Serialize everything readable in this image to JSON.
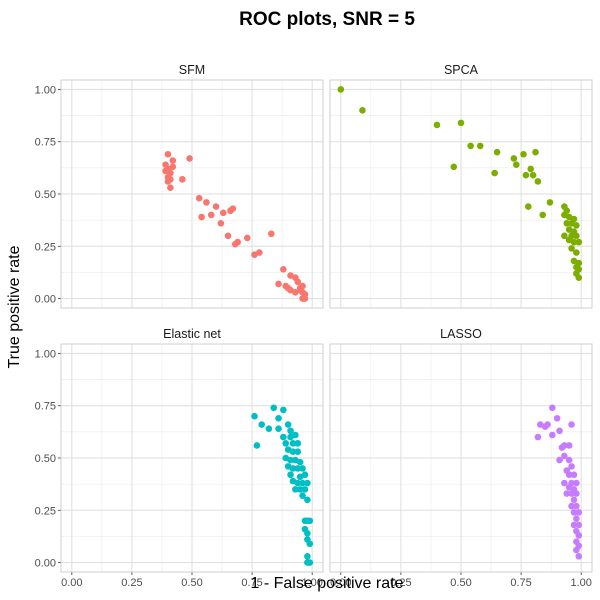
{
  "chart_data": {
    "type": "scatter",
    "title": "ROC plots, SNR = 5",
    "xlabel": "1 - False positive rate",
    "ylabel": "True positive rate",
    "xlim": [
      0,
      1
    ],
    "ylim": [
      0,
      1
    ],
    "x_ticks": [
      "0.00",
      "0.25",
      "0.50",
      "0.75",
      "1.00"
    ],
    "y_ticks": [
      "0.00",
      "0.25",
      "0.50",
      "0.75",
      "1.00"
    ],
    "grid": true,
    "legend": "none",
    "facets": [
      {
        "name": "SFM",
        "color": "#F8766D",
        "points": [
          [
            0.4,
            0.69
          ],
          [
            0.39,
            0.64
          ],
          [
            0.4,
            0.62
          ],
          [
            0.39,
            0.61
          ],
          [
            0.41,
            0.6
          ],
          [
            0.4,
            0.58
          ],
          [
            0.41,
            0.57
          ],
          [
            0.4,
            0.56
          ],
          [
            0.42,
            0.66
          ],
          [
            0.42,
            0.63
          ],
          [
            0.41,
            0.53
          ],
          [
            0.46,
            0.57
          ],
          [
            0.49,
            0.67
          ],
          [
            0.53,
            0.48
          ],
          [
            0.56,
            0.46
          ],
          [
            0.54,
            0.39
          ],
          [
            0.58,
            0.4
          ],
          [
            0.6,
            0.44
          ],
          [
            0.63,
            0.41
          ],
          [
            0.66,
            0.42
          ],
          [
            0.67,
            0.43
          ],
          [
            0.62,
            0.36
          ],
          [
            0.65,
            0.3
          ],
          [
            0.68,
            0.26
          ],
          [
            0.69,
            0.27
          ],
          [
            0.73,
            0.29
          ],
          [
            0.76,
            0.21
          ],
          [
            0.78,
            0.22
          ],
          [
            0.83,
            0.31
          ],
          [
            0.88,
            0.14
          ],
          [
            0.86,
            0.07
          ],
          [
            0.89,
            0.06
          ],
          [
            0.9,
            0.05
          ],
          [
            0.91,
            0.04
          ],
          [
            0.91,
            0.11
          ],
          [
            0.93,
            0.1
          ],
          [
            0.94,
            0.08
          ],
          [
            0.95,
            0.05
          ],
          [
            0.93,
            0.03
          ],
          [
            0.96,
            0.06
          ],
          [
            0.95,
            0.04
          ],
          [
            0.96,
            0.0
          ],
          [
            0.97,
            0.0
          ],
          [
            0.97,
            0.02
          ],
          [
            0.96,
            0.03
          ]
        ]
      },
      {
        "name": "SPCA",
        "color": "#7CAE00",
        "points": [
          [
            0.0,
            1.0
          ],
          [
            0.09,
            0.9
          ],
          [
            0.4,
            0.83
          ],
          [
            0.5,
            0.84
          ],
          [
            0.54,
            0.73
          ],
          [
            0.58,
            0.73
          ],
          [
            0.47,
            0.63
          ],
          [
            0.65,
            0.7
          ],
          [
            0.72,
            0.67
          ],
          [
            0.76,
            0.69
          ],
          [
            0.73,
            0.64
          ],
          [
            0.81,
            0.7
          ],
          [
            0.64,
            0.6
          ],
          [
            0.77,
            0.59
          ],
          [
            0.79,
            0.62
          ],
          [
            0.8,
            0.59
          ],
          [
            0.82,
            0.56
          ],
          [
            0.78,
            0.44
          ],
          [
            0.87,
            0.46
          ],
          [
            0.84,
            0.4
          ],
          [
            0.93,
            0.44
          ],
          [
            0.94,
            0.42
          ],
          [
            0.93,
            0.4
          ],
          [
            0.95,
            0.39
          ],
          [
            0.97,
            0.38
          ],
          [
            0.94,
            0.36
          ],
          [
            0.96,
            0.36
          ],
          [
            0.98,
            0.35
          ],
          [
            0.95,
            0.33
          ],
          [
            0.97,
            0.32
          ],
          [
            0.93,
            0.3
          ],
          [
            0.96,
            0.3
          ],
          [
            0.98,
            0.3
          ],
          [
            0.95,
            0.28
          ],
          [
            0.97,
            0.27
          ],
          [
            0.99,
            0.27
          ],
          [
            0.96,
            0.24
          ],
          [
            0.98,
            0.22
          ],
          [
            0.97,
            0.18
          ],
          [
            0.99,
            0.17
          ],
          [
            0.98,
            0.15
          ],
          [
            0.99,
            0.14
          ],
          [
            0.98,
            0.12
          ],
          [
            0.99,
            0.1
          ]
        ]
      },
      {
        "name": "Elastic net",
        "color": "#00BFC4",
        "points": [
          [
            0.76,
            0.7
          ],
          [
            0.79,
            0.66
          ],
          [
            0.84,
            0.74
          ],
          [
            0.88,
            0.73
          ],
          [
            0.86,
            0.69
          ],
          [
            0.82,
            0.64
          ],
          [
            0.86,
            0.64
          ],
          [
            0.9,
            0.66
          ],
          [
            0.91,
            0.63
          ],
          [
            0.88,
            0.6
          ],
          [
            0.91,
            0.6
          ],
          [
            0.93,
            0.61
          ],
          [
            0.89,
            0.57
          ],
          [
            0.92,
            0.57
          ],
          [
            0.94,
            0.57
          ],
          [
            0.77,
            0.56
          ],
          [
            0.9,
            0.54
          ],
          [
            0.92,
            0.53
          ],
          [
            0.94,
            0.53
          ],
          [
            0.89,
            0.5
          ],
          [
            0.91,
            0.49
          ],
          [
            0.93,
            0.49
          ],
          [
            0.95,
            0.48
          ],
          [
            0.9,
            0.46
          ],
          [
            0.92,
            0.45
          ],
          [
            0.94,
            0.45
          ],
          [
            0.96,
            0.45
          ],
          [
            0.91,
            0.42
          ],
          [
            0.95,
            0.41
          ],
          [
            0.97,
            0.42
          ],
          [
            0.92,
            0.39
          ],
          [
            0.94,
            0.38
          ],
          [
            0.96,
            0.38
          ],
          [
            0.98,
            0.38
          ],
          [
            0.93,
            0.35
          ],
          [
            0.95,
            0.35
          ],
          [
            0.97,
            0.35
          ],
          [
            0.96,
            0.32
          ],
          [
            0.98,
            0.3
          ],
          [
            0.97,
            0.2
          ],
          [
            0.98,
            0.2
          ],
          [
            0.99,
            0.2
          ],
          [
            0.97,
            0.16
          ],
          [
            0.98,
            0.14
          ],
          [
            0.98,
            0.11
          ],
          [
            0.99,
            0.09
          ],
          [
            0.98,
            0.03
          ],
          [
            0.99,
            0.0
          ],
          [
            0.98,
            0.0
          ]
        ]
      },
      {
        "name": "LASSO",
        "color": "#C77CFF",
        "points": [
          [
            0.88,
            0.74
          ],
          [
            0.9,
            0.69
          ],
          [
            0.83,
            0.66
          ],
          [
            0.86,
            0.66
          ],
          [
            0.85,
            0.65
          ],
          [
            0.96,
            0.66
          ],
          [
            0.82,
            0.6
          ],
          [
            0.88,
            0.61
          ],
          [
            0.91,
            0.63
          ],
          [
            0.93,
            0.56
          ],
          [
            0.95,
            0.56
          ],
          [
            0.92,
            0.55
          ],
          [
            0.93,
            0.51
          ],
          [
            0.91,
            0.49
          ],
          [
            0.95,
            0.49
          ],
          [
            0.96,
            0.46
          ],
          [
            0.94,
            0.44
          ],
          [
            0.95,
            0.42
          ],
          [
            0.97,
            0.42
          ],
          [
            0.93,
            0.38
          ],
          [
            0.96,
            0.38
          ],
          [
            0.98,
            0.38
          ],
          [
            0.95,
            0.36
          ],
          [
            0.97,
            0.35
          ],
          [
            0.94,
            0.33
          ],
          [
            0.96,
            0.33
          ],
          [
            0.98,
            0.33
          ],
          [
            0.97,
            0.3
          ],
          [
            0.96,
            0.27
          ],
          [
            0.98,
            0.27
          ],
          [
            0.97,
            0.24
          ],
          [
            0.99,
            0.24
          ],
          [
            0.98,
            0.21
          ],
          [
            0.97,
            0.18
          ],
          [
            0.99,
            0.18
          ],
          [
            0.98,
            0.15
          ],
          [
            0.99,
            0.13
          ],
          [
            0.98,
            0.1
          ],
          [
            0.99,
            0.08
          ],
          [
            0.98,
            0.06
          ],
          [
            0.99,
            0.03
          ]
        ]
      }
    ]
  }
}
